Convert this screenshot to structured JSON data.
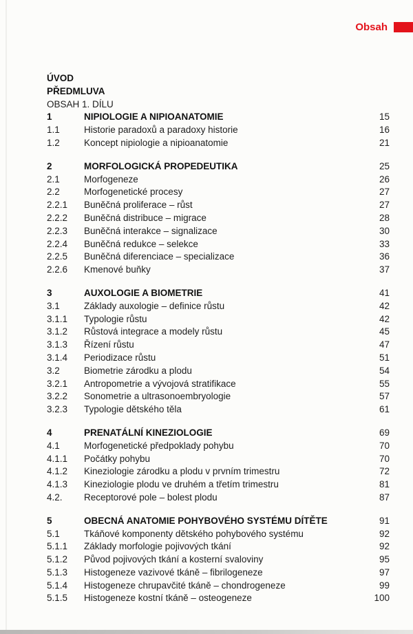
{
  "header": {
    "label": "Obsah",
    "accent_color": "#e3131b"
  },
  "intro_lines": [
    {
      "label": "ÚVOD",
      "bold": true
    },
    {
      "label": "PŘEDMLUVA",
      "bold": true
    },
    {
      "label": "OBSAH 1. DÍLU",
      "bold": false
    }
  ],
  "sections": [
    {
      "rows": [
        {
          "num": "1",
          "title": "NIPIOLOGIE A NIPIOANATOMIE",
          "page": "15",
          "bold": true
        },
        {
          "num": "1.1",
          "title": "Historie paradoxů a paradoxy historie",
          "page": "16",
          "bold": false
        },
        {
          "num": "1.2",
          "title": "Koncept nipiologie a nipioanatomie",
          "page": "21",
          "bold": false
        }
      ]
    },
    {
      "rows": [
        {
          "num": "2",
          "title": "MORFOLOGICKÁ PROPEDEUTIKA",
          "page": "25",
          "bold": true
        },
        {
          "num": "2.1",
          "title": "Morfogeneze",
          "page": "26",
          "bold": false
        },
        {
          "num": "2.2",
          "title": "Morfogenetické procesy",
          "page": "27",
          "bold": false
        },
        {
          "num": "2.2.1",
          "title": "Buněčná proliferace – růst",
          "page": "27",
          "bold": false
        },
        {
          "num": "2.2.2",
          "title": "Buněčná distribuce – migrace",
          "page": "28",
          "bold": false
        },
        {
          "num": "2.2.3",
          "title": "Buněčná interakce – signalizace",
          "page": "30",
          "bold": false
        },
        {
          "num": "2.2.4",
          "title": "Buněčná redukce – selekce",
          "page": "33",
          "bold": false
        },
        {
          "num": "2.2.5",
          "title": "Buněčná diferenciace – specializace",
          "page": "36",
          "bold": false
        },
        {
          "num": "2.2.6",
          "title": "Kmenové buňky",
          "page": "37",
          "bold": false
        }
      ]
    },
    {
      "rows": [
        {
          "num": "3",
          "title": "AUXOLOGIE A BIOMETRIE",
          "page": "41",
          "bold": true
        },
        {
          "num": "3.1",
          "title": "Základy auxologie – definice růstu",
          "page": "42",
          "bold": false
        },
        {
          "num": "3.1.1",
          "title": "Typologie růstu",
          "page": "42",
          "bold": false
        },
        {
          "num": "3.1.2",
          "title": "Růstová integrace a modely růstu",
          "page": "45",
          "bold": false
        },
        {
          "num": "3.1.3",
          "title": "Řízení růstu",
          "page": "47",
          "bold": false
        },
        {
          "num": "3.1.4",
          "title": "Periodizace růstu",
          "page": "51",
          "bold": false
        },
        {
          "num": "3.2",
          "title": "Biometrie zárodku a plodu",
          "page": "54",
          "bold": false
        },
        {
          "num": "3.2.1",
          "title": "Antropometrie a vývojová stratifikace",
          "page": "55",
          "bold": false
        },
        {
          "num": "3.2.2",
          "title": "Sonometrie a ultrasonoembryologie",
          "page": "57",
          "bold": false
        },
        {
          "num": "3.2.3",
          "title": "Typologie dětského těla",
          "page": "61",
          "bold": false
        }
      ]
    },
    {
      "rows": [
        {
          "num": "4",
          "title": "PRENATÁLNÍ KINEZIOLOGIE",
          "page": "69",
          "bold": true
        },
        {
          "num": "4.1",
          "title": "Morfogenetické předpoklady pohybu",
          "page": "70",
          "bold": false
        },
        {
          "num": "4.1.1",
          "title": "Počátky pohybu",
          "page": "70",
          "bold": false
        },
        {
          "num": "4.1.2",
          "title": "Kineziologie zárodku a plodu v prvním trimestru",
          "page": "72",
          "bold": false
        },
        {
          "num": "4.1.3",
          "title": "Kineziologie plodu ve druhém a třetím trimestru",
          "page": "81",
          "bold": false
        },
        {
          "num": "4.2.",
          "title": "Receptorové pole – bolest plodu",
          "page": "87",
          "bold": false
        }
      ]
    },
    {
      "rows": [
        {
          "num": "5",
          "title": "OBECNÁ ANATOMIE POHYBOVÉHO SYSTÉMU DÍTĚTE",
          "page": "91",
          "bold": true
        },
        {
          "num": "5.1",
          "title": "Tkáňové komponenty dětského pohybového systému",
          "page": "92",
          "bold": false
        },
        {
          "num": "5.1.1",
          "title": "Základy morfologie pojivových tkání",
          "page": "92",
          "bold": false
        },
        {
          "num": "5.1.2",
          "title": "Původ pojivových tkání a kosterní svaloviny",
          "page": "95",
          "bold": false
        },
        {
          "num": "5.1.3",
          "title": "Histogeneze vazivové tkáně – fibrilogeneze",
          "page": "97",
          "bold": false
        },
        {
          "num": "5.1.4",
          "title": "Histogeneze chrupavčité tkáně – chondrogeneze",
          "page": "99",
          "bold": false
        },
        {
          "num": "5.1.5",
          "title": "Histogeneze kostní tkáně – osteogeneze",
          "page": "100",
          "bold": false
        }
      ]
    }
  ]
}
